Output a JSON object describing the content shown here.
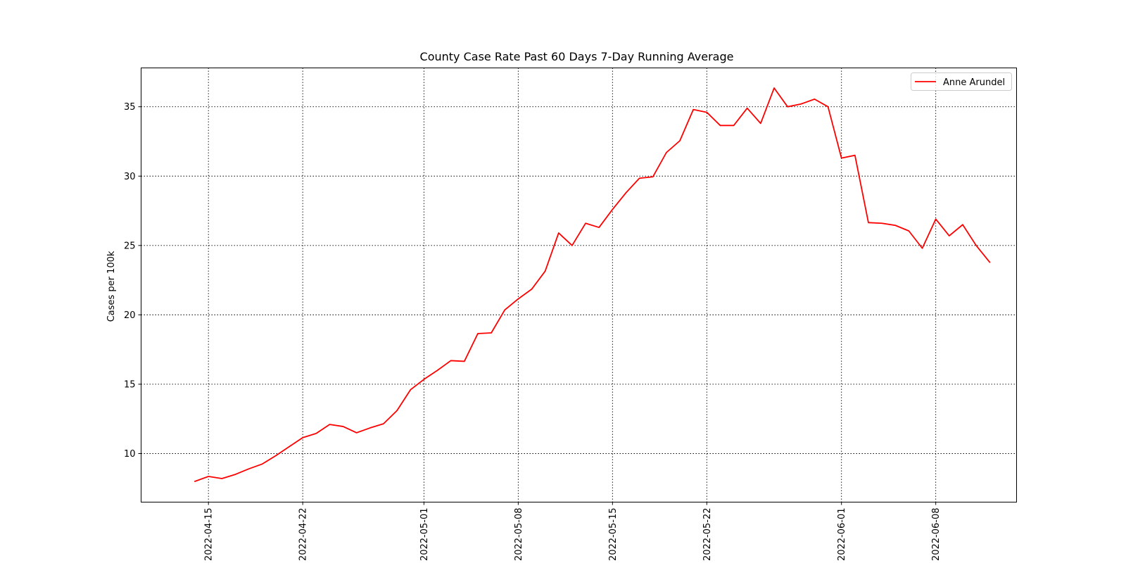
{
  "chart_data": {
    "type": "line",
    "title": "County Case Rate  Past 60 Days 7-Day Running Average",
    "xlabel": "",
    "ylabel": "Cases per 100k",
    "grid": true,
    "legend_position": "top-right",
    "xlim": [
      "2022-04-10",
      "2022-06-14"
    ],
    "ylim": [
      6.5,
      37.8
    ],
    "x_ticks": [
      "2022-04-15",
      "2022-04-22",
      "2022-05-01",
      "2022-05-08",
      "2022-05-15",
      "2022-05-22",
      "2022-06-01",
      "2022-06-08"
    ],
    "y_ticks": [
      10,
      15,
      20,
      25,
      30,
      35
    ],
    "start_date": "2022-04-14",
    "series": [
      {
        "name": "Anne Arundel",
        "color": "#ff0000",
        "values": [
          8.0,
          8.35,
          8.2,
          8.5,
          8.9,
          9.25,
          9.85,
          10.5,
          11.15,
          11.45,
          12.1,
          11.95,
          11.5,
          11.85,
          12.15,
          13.1,
          14.6,
          15.35,
          16.0,
          16.7,
          16.65,
          18.65,
          18.7,
          20.35,
          21.15,
          21.85,
          23.15,
          25.9,
          25.0,
          26.6,
          26.3,
          27.6,
          28.8,
          29.85,
          29.95,
          31.7,
          32.55,
          34.8,
          34.6,
          33.65,
          33.65,
          34.9,
          33.8,
          36.35,
          35.0,
          35.2,
          35.55,
          35.0,
          31.3,
          31.5,
          26.65,
          26.6,
          26.45,
          26.05,
          24.8,
          26.9,
          25.7,
          26.5,
          25.0,
          23.8
        ]
      }
    ]
  }
}
